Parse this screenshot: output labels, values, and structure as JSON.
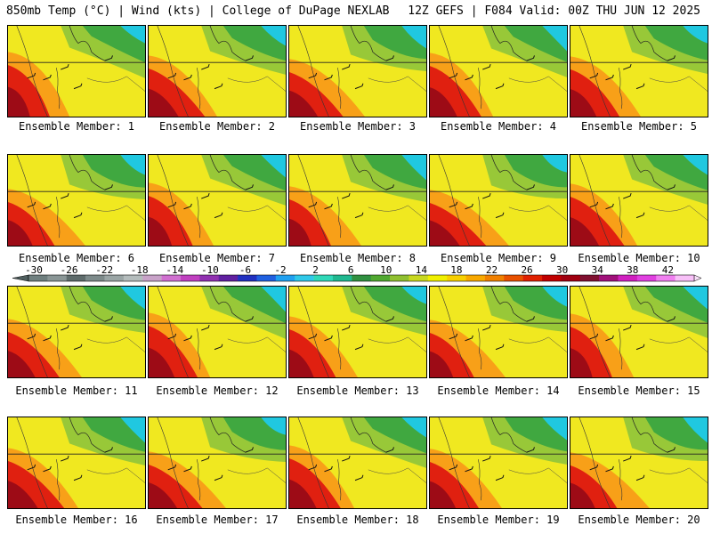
{
  "header": {
    "left": "850mb Temp (°C) | Wind (kts) | College of DuPage NEXLAB",
    "right": "12Z GEFS | F084 Valid: 00Z THU JUN 12 2025"
  },
  "members": [
    {
      "label": "Ensemble Member: 1"
    },
    {
      "label": "Ensemble Member: 2"
    },
    {
      "label": "Ensemble Member: 3"
    },
    {
      "label": "Ensemble Member: 4"
    },
    {
      "label": "Ensemble Member: 5"
    },
    {
      "label": "Ensemble Member: 6"
    },
    {
      "label": "Ensemble Member: 7"
    },
    {
      "label": "Ensemble Member: 8"
    },
    {
      "label": "Ensemble Member: 9"
    },
    {
      "label": "Ensemble Member: 10"
    },
    {
      "label": "Ensemble Member: 11"
    },
    {
      "label": "Ensemble Member: 12"
    },
    {
      "label": "Ensemble Member: 13"
    },
    {
      "label": "Ensemble Member: 14"
    },
    {
      "label": "Ensemble Member: 15"
    },
    {
      "label": "Ensemble Member: 16"
    },
    {
      "label": "Ensemble Member: 17"
    },
    {
      "label": "Ensemble Member: 18"
    },
    {
      "label": "Ensemble Member: 19"
    },
    {
      "label": "Ensemble Member: 20"
    }
  ],
  "colorbar": {
    "tick_labels": [
      "-30",
      "-26",
      "-22",
      "-18",
      "-14",
      "-10",
      "-6",
      "-2",
      "2",
      "6",
      "10",
      "14",
      "18",
      "22",
      "26",
      "30",
      "34",
      "38",
      "42"
    ],
    "colors": [
      "#6f7f7f",
      "#8a9696",
      "#5e6b6b",
      "#7d8a8a",
      "#9aa5a5",
      "#b4bcbc",
      "#c8a2c8",
      "#d070d0",
      "#c040c0",
      "#9030b0",
      "#6020a0",
      "#2030c0",
      "#2060e0",
      "#20a0f0",
      "#30c8e8",
      "#30d8b8",
      "#20b890",
      "#309040",
      "#50a830",
      "#90c030",
      "#c8d820",
      "#f0f000",
      "#f8d000",
      "#f8a800",
      "#f08000",
      "#e85000",
      "#e02000",
      "#c00000",
      "#a00010",
      "#801030",
      "#a0107a",
      "#d020c0",
      "#e040e0",
      "#f080f0",
      "#f8c0f8"
    ]
  },
  "palette": {
    "cool": "#20c8e0",
    "green": "#40a840",
    "lime": "#98c838",
    "yellow": "#f0e820",
    "orange": "#f8a018",
    "red": "#e02010",
    "darkred": "#900818"
  }
}
